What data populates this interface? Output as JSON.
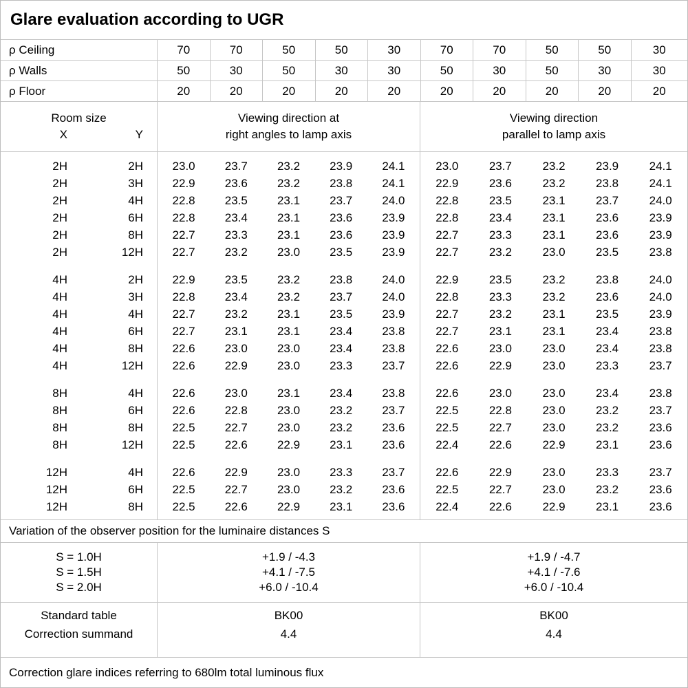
{
  "title": "Glare evaluation according to UGR",
  "reflectance": {
    "rows": [
      {
        "label": "ρ Ceiling",
        "values": [
          "70",
          "70",
          "50",
          "50",
          "30",
          "70",
          "70",
          "50",
          "50",
          "30"
        ]
      },
      {
        "label": "ρ Walls",
        "values": [
          "50",
          "30",
          "50",
          "30",
          "30",
          "50",
          "30",
          "50",
          "30",
          "30"
        ]
      },
      {
        "label": "ρ Floor",
        "values": [
          "20",
          "20",
          "20",
          "20",
          "20",
          "20",
          "20",
          "20",
          "20",
          "20"
        ]
      }
    ]
  },
  "room_size": {
    "title": "Room size",
    "x": "X",
    "y": "Y"
  },
  "viewing_headers": {
    "right_angles_line1": "Viewing direction at",
    "right_angles_line2": "right angles to lamp axis",
    "parallel_line1": "Viewing direction",
    "parallel_line2": "parallel to lamp axis"
  },
  "ugr_table": {
    "groups": [
      {
        "rows": [
          {
            "x": "2H",
            "y": "2H",
            "right_angles": [
              "23.0",
              "23.7",
              "23.2",
              "23.9",
              "24.1"
            ],
            "parallel": [
              "23.0",
              "23.7",
              "23.2",
              "23.9",
              "24.1"
            ]
          },
          {
            "x": "2H",
            "y": "3H",
            "right_angles": [
              "22.9",
              "23.6",
              "23.2",
              "23.8",
              "24.1"
            ],
            "parallel": [
              "22.9",
              "23.6",
              "23.2",
              "23.8",
              "24.1"
            ]
          },
          {
            "x": "2H",
            "y": "4H",
            "right_angles": [
              "22.8",
              "23.5",
              "23.1",
              "23.7",
              "24.0"
            ],
            "parallel": [
              "22.8",
              "23.5",
              "23.1",
              "23.7",
              "24.0"
            ]
          },
          {
            "x": "2H",
            "y": "6H",
            "right_angles": [
              "22.8",
              "23.4",
              "23.1",
              "23.6",
              "23.9"
            ],
            "parallel": [
              "22.8",
              "23.4",
              "23.1",
              "23.6",
              "23.9"
            ]
          },
          {
            "x": "2H",
            "y": "8H",
            "right_angles": [
              "22.7",
              "23.3",
              "23.1",
              "23.6",
              "23.9"
            ],
            "parallel": [
              "22.7",
              "23.3",
              "23.1",
              "23.6",
              "23.9"
            ]
          },
          {
            "x": "2H",
            "y": "12H",
            "right_angles": [
              "22.7",
              "23.2",
              "23.0",
              "23.5",
              "23.9"
            ],
            "parallel": [
              "22.7",
              "23.2",
              "23.0",
              "23.5",
              "23.8"
            ]
          }
        ]
      },
      {
        "rows": [
          {
            "x": "4H",
            "y": "2H",
            "right_angles": [
              "22.9",
              "23.5",
              "23.2",
              "23.8",
              "24.0"
            ],
            "parallel": [
              "22.9",
              "23.5",
              "23.2",
              "23.8",
              "24.0"
            ]
          },
          {
            "x": "4H",
            "y": "3H",
            "right_angles": [
              "22.8",
              "23.4",
              "23.2",
              "23.7",
              "24.0"
            ],
            "parallel": [
              "22.8",
              "23.3",
              "23.2",
              "23.6",
              "24.0"
            ]
          },
          {
            "x": "4H",
            "y": "4H",
            "right_angles": [
              "22.7",
              "23.2",
              "23.1",
              "23.5",
              "23.9"
            ],
            "parallel": [
              "22.7",
              "23.2",
              "23.1",
              "23.5",
              "23.9"
            ]
          },
          {
            "x": "4H",
            "y": "6H",
            "right_angles": [
              "22.7",
              "23.1",
              "23.1",
              "23.4",
              "23.8"
            ],
            "parallel": [
              "22.7",
              "23.1",
              "23.1",
              "23.4",
              "23.8"
            ]
          },
          {
            "x": "4H",
            "y": "8H",
            "right_angles": [
              "22.6",
              "23.0",
              "23.0",
              "23.4",
              "23.8"
            ],
            "parallel": [
              "22.6",
              "23.0",
              "23.0",
              "23.4",
              "23.8"
            ]
          },
          {
            "x": "4H",
            "y": "12H",
            "right_angles": [
              "22.6",
              "22.9",
              "23.0",
              "23.3",
              "23.7"
            ],
            "parallel": [
              "22.6",
              "22.9",
              "23.0",
              "23.3",
              "23.7"
            ]
          }
        ]
      },
      {
        "rows": [
          {
            "x": "8H",
            "y": "4H",
            "right_angles": [
              "22.6",
              "23.0",
              "23.1",
              "23.4",
              "23.8"
            ],
            "parallel": [
              "22.6",
              "23.0",
              "23.0",
              "23.4",
              "23.8"
            ]
          },
          {
            "x": "8H",
            "y": "6H",
            "right_angles": [
              "22.6",
              "22.8",
              "23.0",
              "23.2",
              "23.7"
            ],
            "parallel": [
              "22.5",
              "22.8",
              "23.0",
              "23.2",
              "23.7"
            ]
          },
          {
            "x": "8H",
            "y": "8H",
            "right_angles": [
              "22.5",
              "22.7",
              "23.0",
              "23.2",
              "23.6"
            ],
            "parallel": [
              "22.5",
              "22.7",
              "23.0",
              "23.2",
              "23.6"
            ]
          },
          {
            "x": "8H",
            "y": "12H",
            "right_angles": [
              "22.5",
              "22.6",
              "22.9",
              "23.1",
              "23.6"
            ],
            "parallel": [
              "22.4",
              "22.6",
              "22.9",
              "23.1",
              "23.6"
            ]
          }
        ]
      },
      {
        "rows": [
          {
            "x": "12H",
            "y": "4H",
            "right_angles": [
              "22.6",
              "22.9",
              "23.0",
              "23.3",
              "23.7"
            ],
            "parallel": [
              "22.6",
              "22.9",
              "23.0",
              "23.3",
              "23.7"
            ]
          },
          {
            "x": "12H",
            "y": "6H",
            "right_angles": [
              "22.5",
              "22.7",
              "23.0",
              "23.2",
              "23.6"
            ],
            "parallel": [
              "22.5",
              "22.7",
              "23.0",
              "23.2",
              "23.6"
            ]
          },
          {
            "x": "12H",
            "y": "8H",
            "right_angles": [
              "22.5",
              "22.6",
              "22.9",
              "23.1",
              "23.6"
            ],
            "parallel": [
              "22.4",
              "22.6",
              "22.9",
              "23.1",
              "23.6"
            ]
          }
        ]
      }
    ]
  },
  "variation": {
    "heading": "Variation of the observer position for the luminaire distances S",
    "rows": [
      {
        "label": "S = 1.0H",
        "right_angles": "+1.9 / -4.3",
        "parallel": "+1.9 / -4.7"
      },
      {
        "label": "S = 1.5H",
        "right_angles": "+4.1 / -7.5",
        "parallel": "+4.1 / -7.6"
      },
      {
        "label": "S = 2.0H",
        "right_angles": "+6.0 / -10.4",
        "parallel": "+6.0 / -10.4"
      }
    ]
  },
  "standard": {
    "rows": [
      {
        "label": "Standard table",
        "right_angles": "BK00",
        "parallel": "BK00"
      },
      {
        "label": "Correction summand",
        "right_angles": "4.4",
        "parallel": "4.4"
      }
    ]
  },
  "footer": "Correction glare indices referring to 680lm total luminous flux",
  "colors": {
    "background": "#ffffff",
    "grid_line": "#c6c6c6",
    "text": "#000000"
  }
}
